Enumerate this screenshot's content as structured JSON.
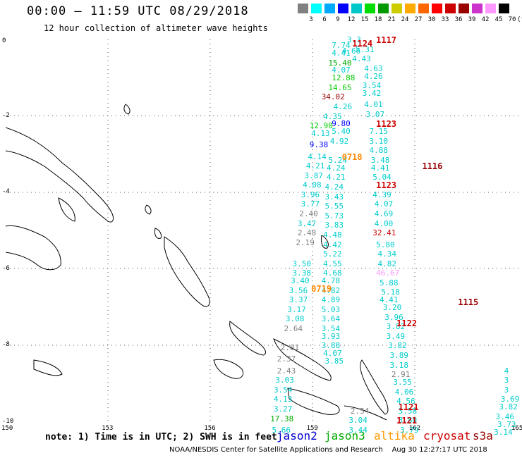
{
  "header": {
    "title": "00:00 – 11:59 UTC 08/29/2018",
    "subtitle": "12 hour collection of altimeter wave heights"
  },
  "legend": {
    "unit": "(ft)",
    "colors": [
      "#808080",
      "#00ffff",
      "#00aaff",
      "#0000ff",
      "#00c8c8",
      "#00dd00",
      "#009900",
      "#cccc00",
      "#ffaa00",
      "#ff6600",
      "#ff0000",
      "#cc0000",
      "#990000",
      "#cc33cc",
      "#ff99ff",
      "#000000"
    ],
    "ticks": [
      "3",
      "6",
      "9",
      "12",
      "15",
      "18",
      "21",
      "24",
      "27",
      "30",
      "33",
      "36",
      "39",
      "42",
      "45",
      "70"
    ]
  },
  "axes": {
    "x_ticks": [
      "150",
      "153",
      "156",
      "159",
      "162",
      "165"
    ],
    "y_ticks": [
      "0",
      "-2",
      "-4",
      "-6",
      "-8",
      "-10"
    ]
  },
  "tracks": [
    {
      "label": "1124",
      "color": "#cc0000",
      "lat": -0.1,
      "lon": 160.15
    },
    {
      "label": "1117",
      "color": "#cc0000",
      "lat": -0.0,
      "lon": 160.85
    },
    {
      "label": "1123",
      "color": "#cc0000",
      "lat": -2.2,
      "lon": 160.85
    },
    {
      "label": "0718",
      "color": "#ff8800",
      "lat": -3.05,
      "lon": 159.85
    },
    {
      "label": "1116",
      "color": "#990000",
      "lat": -3.3,
      "lon": 162.2
    },
    {
      "label": "1123",
      "color": "#cc0000",
      "lat": -3.8,
      "lon": 160.85
    },
    {
      "label": "0719",
      "color": "#ff8800",
      "lat": -6.5,
      "lon": 158.95
    },
    {
      "label": "1115",
      "color": "#990000",
      "lat": -6.85,
      "lon": 163.25
    },
    {
      "label": "1122",
      "color": "#cc0000",
      "lat": -7.4,
      "lon": 161.45
    },
    {
      "label": "1121",
      "color": "#cc0000",
      "lat": -9.6,
      "lon": 161.5
    },
    {
      "label": "1121",
      "color": "#cc0000",
      "lat": -9.95,
      "lon": 161.45
    }
  ],
  "points": [
    {
      "v": "3.3",
      "c": "#00cccc",
      "lat": 0.0,
      "lon": 160.0
    },
    {
      "v": "7.74",
      "c": "#00cccc",
      "lat": -0.15,
      "lon": 159.55
    },
    {
      "v": "4.66",
      "c": "#00cccc",
      "lat": -0.3,
      "lon": 159.85
    },
    {
      "v": "5.31",
      "c": "#00cccc",
      "lat": -0.25,
      "lon": 160.25
    },
    {
      "v": "4.41",
      "c": "#00cccc",
      "lat": -0.35,
      "lon": 159.55
    },
    {
      "v": "4.43",
      "c": "#00cccc",
      "lat": -0.5,
      "lon": 160.15
    },
    {
      "v": "15.40",
      "c": "#00aa00",
      "lat": -0.6,
      "lon": 159.45
    },
    {
      "v": "4.63",
      "c": "#00cccc",
      "lat": -0.75,
      "lon": 160.5
    },
    {
      "v": "4.07",
      "c": "#00cccc",
      "lat": -0.8,
      "lon": 159.55
    },
    {
      "v": "4.26",
      "c": "#00cccc",
      "lat": -0.95,
      "lon": 160.5
    },
    {
      "v": "12.88",
      "c": "#00cc00",
      "lat": -1.0,
      "lon": 159.55
    },
    {
      "v": "3.54",
      "c": "#00cccc",
      "lat": -1.2,
      "lon": 160.45
    },
    {
      "v": "14.65",
      "c": "#00cc00",
      "lat": -1.25,
      "lon": 159.45
    },
    {
      "v": "3.42",
      "c": "#00cccc",
      "lat": -1.4,
      "lon": 160.45
    },
    {
      "v": "34.02",
      "c": "#990000",
      "lat": -1.5,
      "lon": 159.25
    },
    {
      "v": "4.01",
      "c": "#00cccc",
      "lat": -1.7,
      "lon": 160.5
    },
    {
      "v": "4.26",
      "c": "#00cccc",
      "lat": -1.75,
      "lon": 159.6
    },
    {
      "v": "3.07",
      "c": "#00cccc",
      "lat": -1.95,
      "lon": 160.55
    },
    {
      "v": "4.35",
      "c": "#00cccc",
      "lat": -2.0,
      "lon": 159.3
    },
    {
      "v": "12.90",
      "c": "#00cc00",
      "lat": -2.25,
      "lon": 158.9
    },
    {
      "v": "9.80",
      "c": "#0000ff",
      "lat": -2.2,
      "lon": 159.55
    },
    {
      "v": "7.15",
      "c": "#00cccc",
      "lat": -2.4,
      "lon": 160.65
    },
    {
      "v": "4.13",
      "c": "#00cccc",
      "lat": -2.45,
      "lon": 158.95
    },
    {
      "v": "5.40",
      "c": "#00cccc",
      "lat": -2.4,
      "lon": 159.55
    },
    {
      "v": "3.10",
      "c": "#00cccc",
      "lat": -2.65,
      "lon": 160.65
    },
    {
      "v": "9.38",
      "c": "#0000ff",
      "lat": -2.75,
      "lon": 158.9
    },
    {
      "v": "4.92",
      "c": "#00cccc",
      "lat": -2.65,
      "lon": 159.5
    },
    {
      "v": "4.88",
      "c": "#00cccc",
      "lat": -2.9,
      "lon": 160.65
    },
    {
      "v": "4.14",
      "c": "#00cccc",
      "lat": -3.05,
      "lon": 158.85
    },
    {
      "v": "5.24",
      "c": "#00cccc",
      "lat": -3.15,
      "lon": 159.45
    },
    {
      "v": "3.48",
      "c": "#00cccc",
      "lat": -3.15,
      "lon": 160.7
    },
    {
      "v": "4.21",
      "c": "#00cccc",
      "lat": -3.3,
      "lon": 158.8
    },
    {
      "v": "4.24",
      "c": "#00cccc",
      "lat": -3.35,
      "lon": 159.4
    },
    {
      "v": "4.41",
      "c": "#00cccc",
      "lat": -3.35,
      "lon": 160.7
    },
    {
      "v": "3.87",
      "c": "#00cccc",
      "lat": -3.55,
      "lon": 158.75
    },
    {
      "v": "4.21",
      "c": "#00cccc",
      "lat": -3.6,
      "lon": 159.4
    },
    {
      "v": "5.04",
      "c": "#00cccc",
      "lat": -3.6,
      "lon": 160.75
    },
    {
      "v": "4.08",
      "c": "#00cccc",
      "lat": -3.8,
      "lon": 158.7
    },
    {
      "v": "4.24",
      "c": "#00cccc",
      "lat": -3.85,
      "lon": 159.35
    },
    {
      "v": "3.96",
      "c": "#00cccc",
      "lat": -4.05,
      "lon": 158.65
    },
    {
      "v": "3.43",
      "c": "#00cccc",
      "lat": -4.1,
      "lon": 159.35
    },
    {
      "v": "4.39",
      "c": "#00cccc",
      "lat": -4.05,
      "lon": 160.75
    },
    {
      "v": "3.77",
      "c": "#00cccc",
      "lat": -4.3,
      "lon": 158.65
    },
    {
      "v": "5.55",
      "c": "#00cccc",
      "lat": -4.35,
      "lon": 159.35
    },
    {
      "v": "4.07",
      "c": "#00cccc",
      "lat": -4.3,
      "lon": 160.8
    },
    {
      "v": "2.40",
      "c": "#808080",
      "lat": -4.55,
      "lon": 158.6
    },
    {
      "v": "5.73",
      "c": "#00cccc",
      "lat": -4.6,
      "lon": 159.35
    },
    {
      "v": "4.69",
      "c": "#00cccc",
      "lat": -4.55,
      "lon": 160.8
    },
    {
      "v": "3.47",
      "c": "#00cccc",
      "lat": -4.8,
      "lon": 158.55
    },
    {
      "v": "3.83",
      "c": "#00cccc",
      "lat": -4.85,
      "lon": 159.35
    },
    {
      "v": "4.00",
      "c": "#00cccc",
      "lat": -4.8,
      "lon": 160.8
    },
    {
      "v": "2.48",
      "c": "#808080",
      "lat": -5.05,
      "lon": 158.55
    },
    {
      "v": "4.48",
      "c": "#00cccc",
      "lat": -5.1,
      "lon": 159.3
    },
    {
      "v": "32.41",
      "c": "#cc0000",
      "lat": -5.05,
      "lon": 160.75
    },
    {
      "v": "2.19",
      "c": "#808080",
      "lat": -5.3,
      "lon": 158.5
    },
    {
      "v": "4.42",
      "c": "#00cccc",
      "lat": -5.35,
      "lon": 159.3
    },
    {
      "v": "5.80",
      "c": "#00cccc",
      "lat": -5.35,
      "lon": 160.85
    },
    {
      "v": "5.22",
      "c": "#00cccc",
      "lat": -5.6,
      "lon": 159.3
    },
    {
      "v": "4.34",
      "c": "#00cccc",
      "lat": -5.6,
      "lon": 160.9
    },
    {
      "v": "3.50",
      "c": "#00cccc",
      "lat": -5.85,
      "lon": 158.4
    },
    {
      "v": "4.55",
      "c": "#00cccc",
      "lat": -5.85,
      "lon": 159.3
    },
    {
      "v": "4.82",
      "c": "#00cccc",
      "lat": -5.85,
      "lon": 160.9
    },
    {
      "v": "3.38",
      "c": "#00cccc",
      "lat": -6.1,
      "lon": 158.4
    },
    {
      "v": "4.68",
      "c": "#00cccc",
      "lat": -6.1,
      "lon": 159.3
    },
    {
      "v": "46.67",
      "c": "#ff99ff",
      "lat": -6.1,
      "lon": 160.85
    },
    {
      "v": "3.40",
      "c": "#00cccc",
      "lat": -6.3,
      "lon": 158.35
    },
    {
      "v": "4.78",
      "c": "#00cccc",
      "lat": -6.3,
      "lon": 159.25
    },
    {
      "v": "5.88",
      "c": "#00cccc",
      "lat": -6.35,
      "lon": 160.95
    },
    {
      "v": "3.56",
      "c": "#00cccc",
      "lat": -6.55,
      "lon": 158.3
    },
    {
      "v": "4.82",
      "c": "#00cccc",
      "lat": -6.55,
      "lon": 159.25
    },
    {
      "v": "5.18",
      "c": "#00cccc",
      "lat": -6.6,
      "lon": 161.0
    },
    {
      "v": "3.37",
      "c": "#00cccc",
      "lat": -6.8,
      "lon": 158.3
    },
    {
      "v": "4.89",
      "c": "#00cccc",
      "lat": -6.8,
      "lon": 159.25
    },
    {
      "v": "4.41",
      "c": "#00cccc",
      "lat": -6.8,
      "lon": 160.95
    },
    {
      "v": "3.17",
      "c": "#00cccc",
      "lat": -7.05,
      "lon": 158.25
    },
    {
      "v": "5.03",
      "c": "#00cccc",
      "lat": -7.05,
      "lon": 159.25
    },
    {
      "v": "3.20",
      "c": "#00cccc",
      "lat": -7.0,
      "lon": 161.05
    },
    {
      "v": "3.08",
      "c": "#00cccc",
      "lat": -7.3,
      "lon": 158.2
    },
    {
      "v": "3.64",
      "c": "#00cccc",
      "lat": -7.3,
      "lon": 159.25
    },
    {
      "v": "3.96",
      "c": "#00cccc",
      "lat": -7.25,
      "lon": 161.1
    },
    {
      "v": "2.64",
      "c": "#808080",
      "lat": -7.55,
      "lon": 158.15
    },
    {
      "v": "3.54",
      "c": "#00cccc",
      "lat": -7.55,
      "lon": 159.25
    },
    {
      "v": "3.82",
      "c": "#00cccc",
      "lat": -7.5,
      "lon": 161.15
    },
    {
      "v": "3.93",
      "c": "#00cccc",
      "lat": -7.75,
      "lon": 159.25
    },
    {
      "v": "3.49",
      "c": "#00cccc",
      "lat": -7.75,
      "lon": 161.15
    },
    {
      "v": "3.88",
      "c": "#00cccc",
      "lat": -8.0,
      "lon": 159.25
    },
    {
      "v": "3.82",
      "c": "#00cccc",
      "lat": -8.0,
      "lon": 161.2
    },
    {
      "v": "2.81",
      "c": "#808080",
      "lat": -8.05,
      "lon": 158.05
    },
    {
      "v": "4.07",
      "c": "#00cccc",
      "lat": -8.2,
      "lon": 159.3
    },
    {
      "v": "3.89",
      "c": "#00cccc",
      "lat": -8.25,
      "lon": 161.25
    },
    {
      "v": "2.37",
      "c": "#808080",
      "lat": -8.35,
      "lon": 157.95
    },
    {
      "v": "3.85",
      "c": "#00cccc",
      "lat": -8.4,
      "lon": 159.35
    },
    {
      "v": "3.18",
      "c": "#00cccc",
      "lat": -8.5,
      "lon": 161.25
    },
    {
      "v": "2.43",
      "c": "#808080",
      "lat": -8.65,
      "lon": 157.95
    },
    {
      "v": "2.91",
      "c": "#808080",
      "lat": -8.75,
      "lon": 161.3
    },
    {
      "v": "3.03",
      "c": "#00cccc",
      "lat": -8.9,
      "lon": 157.9
    },
    {
      "v": "3.55",
      "c": "#00cccc",
      "lat": -8.95,
      "lon": 161.35
    },
    {
      "v": "3.54",
      "c": "#00cccc",
      "lat": -9.15,
      "lon": 157.85
    },
    {
      "v": "4.06",
      "c": "#00cccc",
      "lat": -9.2,
      "lon": 161.4
    },
    {
      "v": "4.13",
      "c": "#00cccc",
      "lat": -9.4,
      "lon": 157.85
    },
    {
      "v": "4.56",
      "c": "#00cccc",
      "lat": -9.45,
      "lon": 161.45
    },
    {
      "v": "3.27",
      "c": "#00cccc",
      "lat": -9.65,
      "lon": 157.85
    },
    {
      "v": "3.58",
      "c": "#00cccc",
      "lat": -9.7,
      "lon": 161.5
    },
    {
      "v": "2.54",
      "c": "#808080",
      "lat": -9.7,
      "lon": 160.1
    },
    {
      "v": "17.38",
      "c": "#00aa00",
      "lat": -9.9,
      "lon": 157.75
    },
    {
      "v": "3.80",
      "c": "#00cccc",
      "lat": -9.95,
      "lon": 161.5
    },
    {
      "v": "3.04",
      "c": "#00cccc",
      "lat": -9.95,
      "lon": 160.05
    },
    {
      "v": "5.66",
      "c": "#00cccc",
      "lat": -10.2,
      "lon": 157.8
    },
    {
      "v": "3.79",
      "c": "#00cccc",
      "lat": -10.2,
      "lon": 161.55
    },
    {
      "v": "3.44",
      "c": "#00cccc",
      "lat": -10.2,
      "lon": 160.05
    },
    {
      "v": "4",
      "c": "#00cccc",
      "lat": -8.65,
      "lon": 164.6
    },
    {
      "v": "3",
      "c": "#00cccc",
      "lat": -8.9,
      "lon": 164.6
    },
    {
      "v": "3",
      "c": "#00cccc",
      "lat": -9.15,
      "lon": 164.6
    },
    {
      "v": "3.69",
      "c": "#00cccc",
      "lat": -9.4,
      "lon": 164.5
    },
    {
      "v": "3.82",
      "c": "#00cccc",
      "lat": -9.6,
      "lon": 164.45
    },
    {
      "v": "3.46",
      "c": "#00cccc",
      "lat": -9.85,
      "lon": 164.35
    },
    {
      "v": "3.73",
      "c": "#00cccc",
      "lat": -10.05,
      "lon": 164.4
    },
    {
      "v": "3.14",
      "c": "#00cccc",
      "lat": -10.25,
      "lon": 164.3
    }
  ],
  "footer": {
    "note": "note: 1) Time is in UTC; 2) SWH is in feet",
    "satellites": [
      {
        "name": "jason2",
        "color": "#0000cc"
      },
      {
        "name": "jason3",
        "color": "#00aa00"
      },
      {
        "name": "altika",
        "color": "#ff9900"
      },
      {
        "name": "cryosat",
        "color": "#cc0000"
      },
      {
        "name": "s3a",
        "color": "#990000"
      }
    ],
    "credit": "NOAA/NESDIS Center for Satellite Applications and Research",
    "timestamp": "Aug 30 12:27:17 UTC 2018"
  }
}
